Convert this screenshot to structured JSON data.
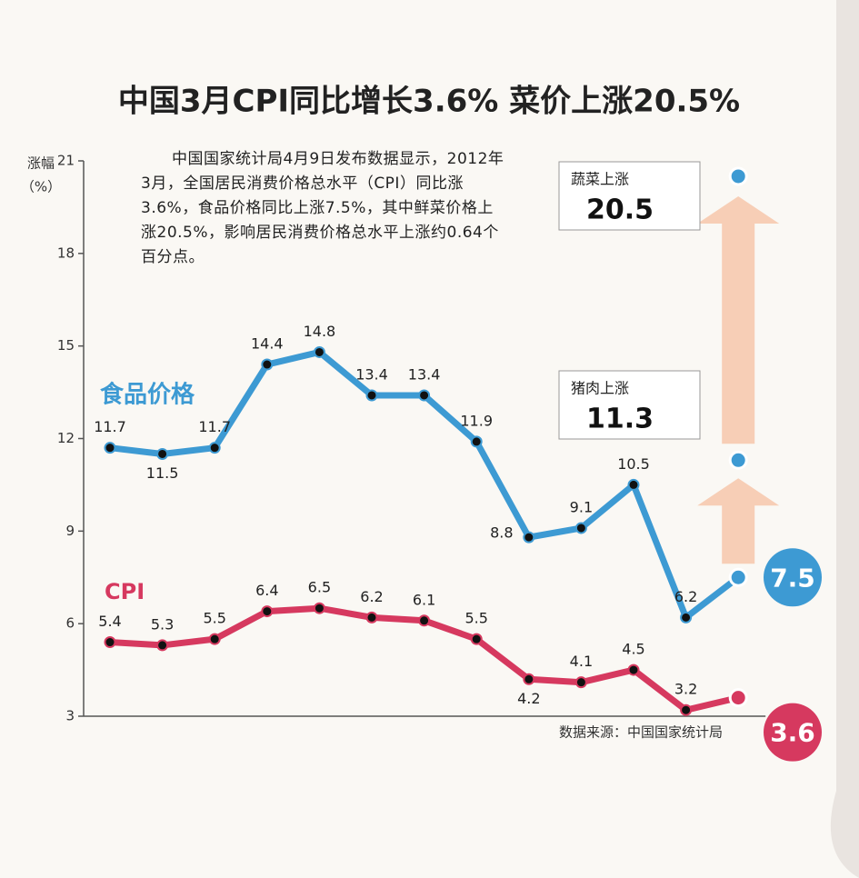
{
  "chart_data": {
    "type": "line",
    "title": "中国3月CPI同比增长3.6% 菜价上涨20.5%",
    "y_label": "涨幅",
    "y_unit": "（%）",
    "description": "中国国家统计局4月9日发布数据显示，2012年3月，全国居民消费价格总水平（CPI）同比涨3.6%，食品价格同比上涨7.5%，其中鲜菜价格上涨20.5%，影响居民消费价格总水平上涨约0.64个百分点。",
    "source": "数据来源：中国国家统计局",
    "categories": [
      null,
      null,
      null,
      null,
      null,
      null,
      null,
      null,
      null,
      null,
      null,
      null,
      null
    ],
    "series": [
      {
        "name": "食品价格",
        "color": "#3d9ad3",
        "values": [
          11.7,
          11.5,
          11.7,
          14.4,
          14.8,
          13.4,
          13.4,
          11.9,
          8.8,
          9.1,
          10.5,
          6.2,
          7.5
        ]
      },
      {
        "name": "CPI",
        "color": "#d6395f",
        "values": [
          5.4,
          5.3,
          5.5,
          6.4,
          6.5,
          6.2,
          6.1,
          5.5,
          4.2,
          4.1,
          4.5,
          3.2,
          3.6
        ]
      }
    ],
    "annotations": [
      {
        "label": "蔬菜上涨",
        "value": 20.5
      },
      {
        "label": "猪肉上涨",
        "value": 11.3
      }
    ],
    "ylim": [
      3,
      21
    ],
    "yticks": [
      3,
      6,
      9,
      12,
      15,
      18,
      21
    ]
  }
}
